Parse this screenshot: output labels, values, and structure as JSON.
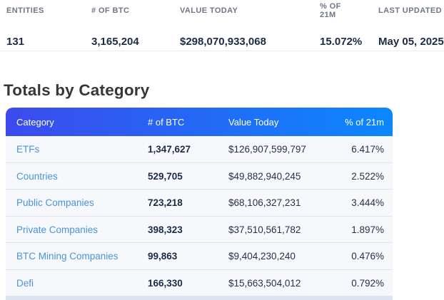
{
  "summary": {
    "headers": [
      "ENTITIES",
      "# OF BTC",
      "VALUE TODAY",
      "% OF 21M",
      "LAST UPDATED"
    ],
    "values": [
      "131",
      "3,165,204",
      "$298,070,933,068",
      "15.072%",
      "May 05, 2025"
    ]
  },
  "section_title": "Totals by Category",
  "table": {
    "headers": [
      "Category",
      "# of BTC",
      "Value Today",
      "% of 21m"
    ],
    "rows": [
      {
        "category": "ETFs",
        "btc": "1,347,627",
        "value": "$126,907,599,797",
        "pct": "6.417%"
      },
      {
        "category": "Countries",
        "btc": "529,705",
        "value": "$49,882,940,245",
        "pct": "2.522%"
      },
      {
        "category": "Public Companies",
        "btc": "723,218",
        "value": "$68,106,327,231",
        "pct": "3.444%"
      },
      {
        "category": "Private Companies",
        "btc": "398,323",
        "value": "$37,510,561,782",
        "pct": "1.897%"
      },
      {
        "category": "BTC Mining Companies",
        "btc": "99,863",
        "value": "$9,404,230,240",
        "pct": "0.476%"
      },
      {
        "category": "Defi",
        "btc": "166,330",
        "value": "$15,663,504,012",
        "pct": "0.792%"
      }
    ]
  },
  "colors": {
    "header_gradient_start": "#3c4aee",
    "header_gradient_end": "#0b87fe",
    "category_link": "#4a94da",
    "value_text": "#1d2b45",
    "muted_header": "#6e7687"
  }
}
